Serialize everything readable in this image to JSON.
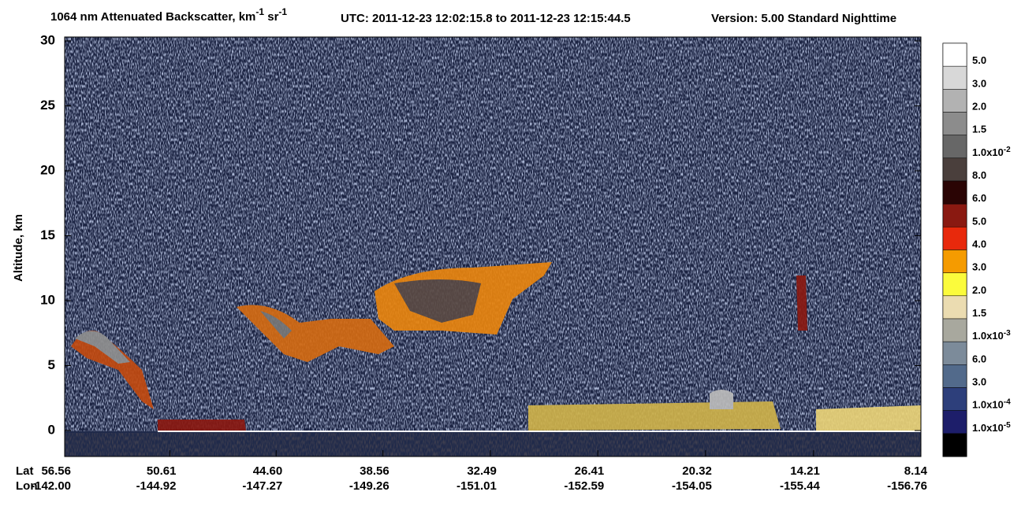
{
  "chart_data": {
    "type": "heatmap",
    "title": {
      "main": "1064 nm Attenuated Backscatter, km",
      "sup1": "-1",
      "unit2": " sr",
      "sup2": "-1",
      "time": "UTC:  2011-12-23 12:02:15.8  to  2011-12-23 12:15:44.5",
      "version": "Version: 5.00  Standard  Nighttime"
    },
    "ylabel": "Altitude, km",
    "ylim": [
      -2,
      30
    ],
    "yticks": [
      0,
      5,
      10,
      15,
      20,
      25,
      30
    ],
    "xlim": [
      56.56,
      8.14
    ],
    "x_row_labels": [
      "Lat",
      "Lon"
    ],
    "xticks": [
      56.56,
      50.61,
      {
        "value": 44.6,
        "label": "44.60"
      },
      38.56,
      32.49,
      26.41,
      20.32,
      14.21,
      8.14
    ],
    "lon_labels": [
      "-142.00",
      "-144.92",
      "-147.27",
      "-149.26",
      "-151.01",
      "-152.59",
      "-154.05",
      "-155.44",
      "-156.76"
    ],
    "colorbar": {
      "colors": [
        "#ffffff",
        "#d8d8d8",
        "#b2b2b2",
        "#8c8c8c",
        "#676767",
        "#4a3f3c",
        "#2a0404",
        "#8a1911",
        "#e8290c",
        "#f59b00",
        "#fbfb3c",
        "#ebdcb1",
        "#a8a89e",
        "#7c8b9a",
        "#526a8b",
        "#2d3f7b",
        "#1d1e6a",
        "#000000"
      ],
      "labels": [
        {
          "text": "5.0"
        },
        {
          "text": "3.0"
        },
        {
          "text": "2.0"
        },
        {
          "text": "1.5"
        },
        {
          "text": "1.0x10",
          "exp": "-2"
        },
        {
          "text": "8.0"
        },
        {
          "text": "6.0"
        },
        {
          "text": "5.0"
        },
        {
          "text": "4.0"
        },
        {
          "text": "3.0"
        },
        {
          "text": "2.0"
        },
        {
          "text": "1.5"
        },
        {
          "text": "1.0x10",
          "exp": "-3"
        },
        {
          "text": "6.0"
        },
        {
          "text": "3.0"
        },
        {
          "text": "1.0x10",
          "exp": "-4"
        },
        {
          "text": "1.0x10",
          "exp": "-5"
        }
      ]
    }
  }
}
